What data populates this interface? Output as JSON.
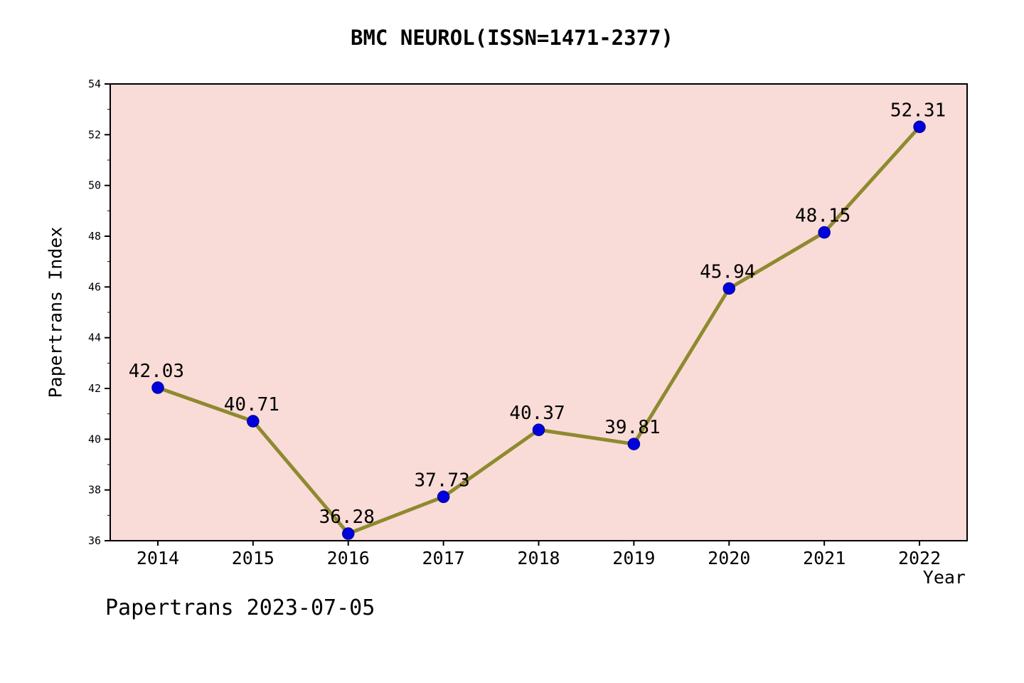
{
  "title": "BMC NEUROL(ISSN=1471-2377)",
  "footer": "Papertrans 2023-07-05",
  "chart_data": {
    "type": "line",
    "title": "BMC NEUROL(ISSN=1471-2377)",
    "xlabel": "Year",
    "ylabel": "Papertrans Index",
    "x": [
      2014,
      2015,
      2016,
      2017,
      2018,
      2019,
      2020,
      2021,
      2022
    ],
    "series": [
      {
        "name": "Papertrans Index",
        "values": [
          42.03,
          40.71,
          36.28,
          37.73,
          40.37,
          39.81,
          45.94,
          48.15,
          52.31
        ]
      }
    ],
    "point_labels": [
      "42.03",
      "40.71",
      "36.28",
      "37.73",
      "40.37",
      "39.81",
      "45.94",
      "48.15",
      "52.31"
    ],
    "ylim": [
      36,
      54
    ],
    "yticks": [
      36,
      38,
      40,
      42,
      44,
      46,
      48,
      50,
      52,
      54
    ],
    "grid": false,
    "legend": "none",
    "colors": {
      "line": "#8e8a2f",
      "marker": "#0000dd",
      "marker_edge": "#0000a6",
      "plot_bg": "#f9dbd7",
      "fig_bg": "#ffffff",
      "axis": "#000000",
      "text": "#000000"
    }
  }
}
